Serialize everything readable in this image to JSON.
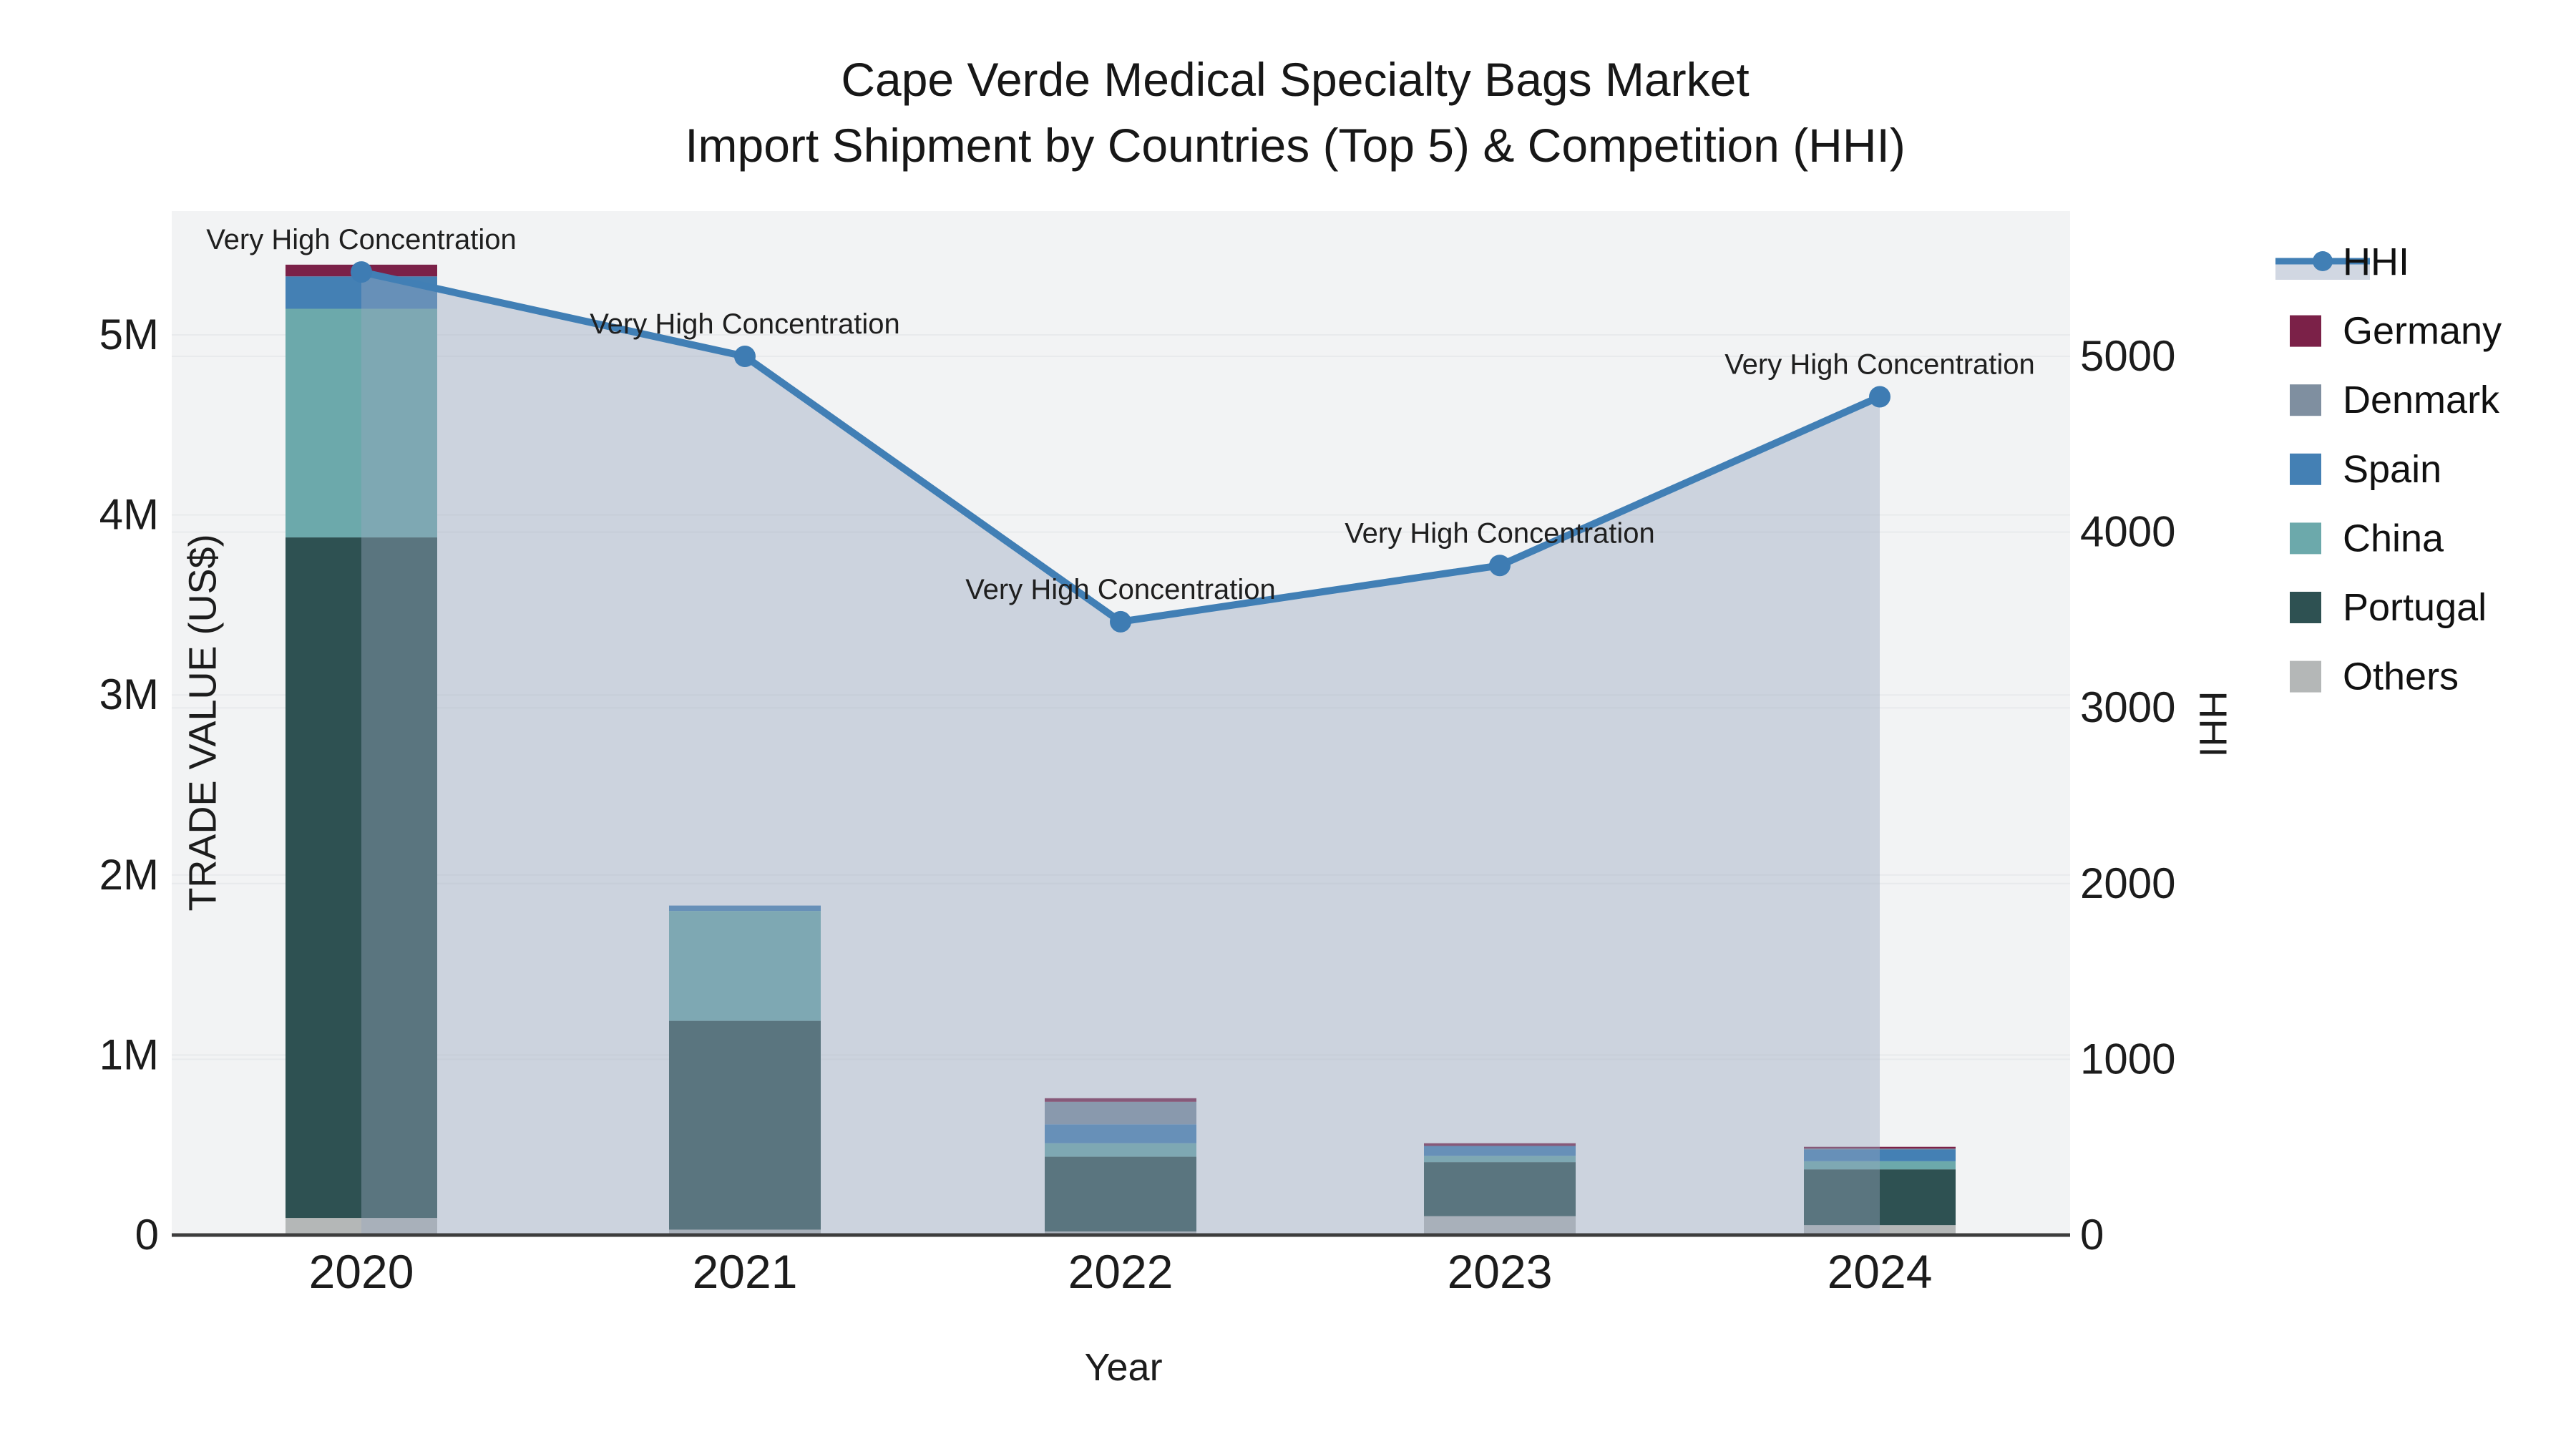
{
  "title": {
    "line1": "Cape Verde Medical Specialty Bags Market",
    "line2": "Import Shipment by Countries (Top 5) & Competition (HHI)"
  },
  "axes": {
    "left": {
      "title": "TRADE VALUE (US$)",
      "tick_labels": [
        "0",
        "1M",
        "2M",
        "3M",
        "4M",
        "5M"
      ],
      "tick_values": [
        0,
        1000000,
        2000000,
        3000000,
        4000000,
        5000000
      ]
    },
    "right": {
      "title": "HHI",
      "tick_labels": [
        "0",
        "1000",
        "2000",
        "3000",
        "4000",
        "5000"
      ],
      "tick_values": [
        0,
        1000,
        2000,
        3000,
        4000,
        5000
      ]
    },
    "x": {
      "title": "Year",
      "tick_labels": [
        "2020",
        "2021",
        "2022",
        "2023",
        "2024"
      ]
    }
  },
  "legend": {
    "items": [
      {
        "label": "HHI",
        "type": "line",
        "color": "#417fb5"
      },
      {
        "label": "Germany",
        "type": "box",
        "color": "#7b2148"
      },
      {
        "label": "Denmark",
        "type": "box",
        "color": "#7f8fa0"
      },
      {
        "label": "Spain",
        "type": "box",
        "color": "#4480b4"
      },
      {
        "label": "China",
        "type": "box",
        "color": "#6ca9ab"
      },
      {
        "label": "Portugal",
        "type": "box",
        "color": "#2e5152"
      },
      {
        "label": "Others",
        "type": "box",
        "color": "#b4b7b7"
      }
    ]
  },
  "colors": {
    "plot_bg": "#f2f3f4",
    "grid": "#e8eaec",
    "axis_line": "#3d3d3d",
    "hhi_line": "#417fb5",
    "hhi_marker": "#3e7cb3",
    "area_fill": "#98a6be",
    "area_fill_opacity": 0.42,
    "tick_text": "#1c1c1c",
    "annotation_text": "#1f1f1f"
  },
  "chart_data": {
    "type": "combo_stacked_bar_line",
    "categories": [
      "2020",
      "2021",
      "2022",
      "2023",
      "2024"
    ],
    "bar_value_unit": "US$ trade value",
    "stack_order_bottom_to_top": [
      "Others",
      "Portugal",
      "China",
      "Spain",
      "Denmark",
      "Germany"
    ],
    "series": [
      {
        "name": "Others",
        "color": "#b4b7b7",
        "values": [
          95000,
          30000,
          20000,
          105000,
          55000
        ]
      },
      {
        "name": "Portugal",
        "color": "#2e5152",
        "values": [
          3780000,
          1160000,
          415000,
          300000,
          310000
        ]
      },
      {
        "name": "China",
        "color": "#6ca9ab",
        "values": [
          1270000,
          610000,
          75000,
          35000,
          45000
        ]
      },
      {
        "name": "Spain",
        "color": "#4480b4",
        "values": [
          180000,
          30000,
          105000,
          55000,
          65000
        ]
      },
      {
        "name": "Denmark",
        "color": "#7f8fa0",
        "values": [
          0,
          0,
          125000,
          0,
          5000
        ]
      },
      {
        "name": "Germany",
        "color": "#7b2148",
        "values": [
          65000,
          0,
          20000,
          15000,
          10000
        ]
      }
    ],
    "line_series": {
      "name": "HHI",
      "axis": "right",
      "values": [
        5480,
        5000,
        3490,
        3810,
        4770
      ],
      "point_annotations": [
        "Very High Concentration",
        "Very High Concentration",
        "Very High Concentration",
        "Very High Concentration",
        "Very High Concentration"
      ],
      "area_fill_to_zero": true
    },
    "ylim_left": [
      0,
      5700000
    ],
    "ylim_right": [
      0,
      5830
    ],
    "grid": true,
    "legend_position": "right"
  }
}
